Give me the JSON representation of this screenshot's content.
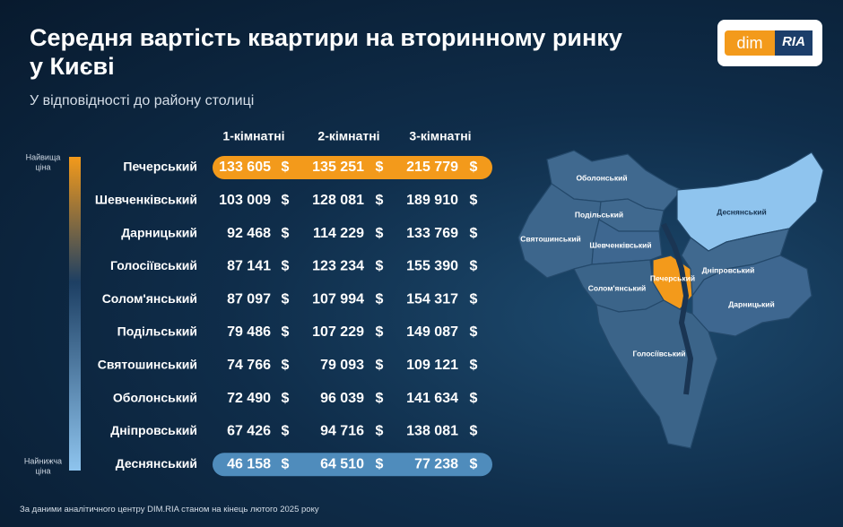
{
  "header": {
    "title_line1": "Середня вартість квартири на вторинному ринку",
    "title_line2": "у Києві",
    "subtitle": "У відповідності до району столиці"
  },
  "logo": {
    "left": "dim",
    "right": "RIA"
  },
  "legend": {
    "top": [
      "Найвища",
      "ціна"
    ],
    "bottom": [
      "Найнижча",
      "ціна"
    ]
  },
  "table": {
    "columns": [
      "1-кімнатні",
      "2-кімнатні",
      "3-кімнатні"
    ],
    "currency": "$",
    "rows": [
      [
        "Печерський",
        "133 605",
        "135 251",
        "215 779"
      ],
      [
        "Шевченківський",
        "103 009",
        "128 081",
        "189 910"
      ],
      [
        "Дарницький",
        "92 468",
        "114 229",
        "133 769"
      ],
      [
        "Голосіївський",
        "87 141",
        "123 234",
        "155 390"
      ],
      [
        "Солом'янський",
        "87 097",
        "107 994",
        "154 317"
      ],
      [
        "Подільський",
        "79 486",
        "107 229",
        "149 087"
      ],
      [
        "Святошинський",
        "74 766",
        "79 093",
        "109 121"
      ],
      [
        "Оболонський",
        "72 490",
        "96 039",
        "141 634"
      ],
      [
        "Дніпровський",
        "67 426",
        "94 716",
        "138 081"
      ],
      [
        "Деснянський",
        "46 158",
        "64 510",
        "77 238"
      ]
    ]
  },
  "map": {
    "labels": [
      "Оболонський",
      "Подільський",
      "Деснянський",
      "Святошинський",
      "Шевченківський",
      "Печерський",
      "Дніпровський",
      "Солом'янський",
      "Дарницький",
      "Голосіївський"
    ]
  },
  "footnote": "За даними аналітичного центру DIM.RIA станом на кінець лютого 2025 року"
}
